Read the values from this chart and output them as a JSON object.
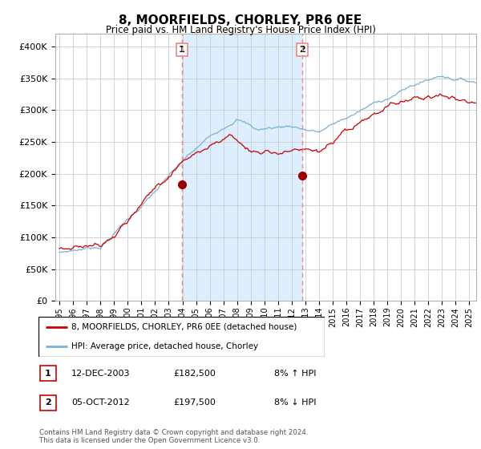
{
  "title": "8, MOORFIELDS, CHORLEY, PR6 0EE",
  "subtitle": "Price paid vs. HM Land Registry's House Price Index (HPI)",
  "legend_line1": "8, MOORFIELDS, CHORLEY, PR6 0EE (detached house)",
  "legend_line2": "HPI: Average price, detached house, Chorley",
  "sale1_label": "1",
  "sale1_date": "12-DEC-2003",
  "sale1_price": "£182,500",
  "sale1_hpi": "8% ↑ HPI",
  "sale2_label": "2",
  "sale2_date": "05-OCT-2012",
  "sale2_price": "£197,500",
  "sale2_hpi": "8% ↓ HPI",
  "footer": "Contains HM Land Registry data © Crown copyright and database right 2024.\nThis data is licensed under the Open Government Licence v3.0.",
  "red_color": "#cc0000",
  "blue_color": "#7ab0d4",
  "sale_dot_color": "#990000",
  "vline_color": "#ee8888",
  "shade_color": "#ddeeff",
  "grid_color": "#cccccc",
  "plot_bg": "#ffffff",
  "ylim": [
    0,
    420000
  ],
  "yticks": [
    0,
    50000,
    100000,
    150000,
    200000,
    250000,
    300000,
    350000,
    400000
  ],
  "ytick_labels": [
    "£0",
    "£50K",
    "£100K",
    "£150K",
    "£200K",
    "£250K",
    "£300K",
    "£350K",
    "£400K"
  ],
  "xmin": 1995.0,
  "xmax": 2025.5,
  "sale1_t": 2003.96,
  "sale2_t": 2012.79,
  "sale1_price_val": 182500,
  "sale2_price_val": 197500
}
